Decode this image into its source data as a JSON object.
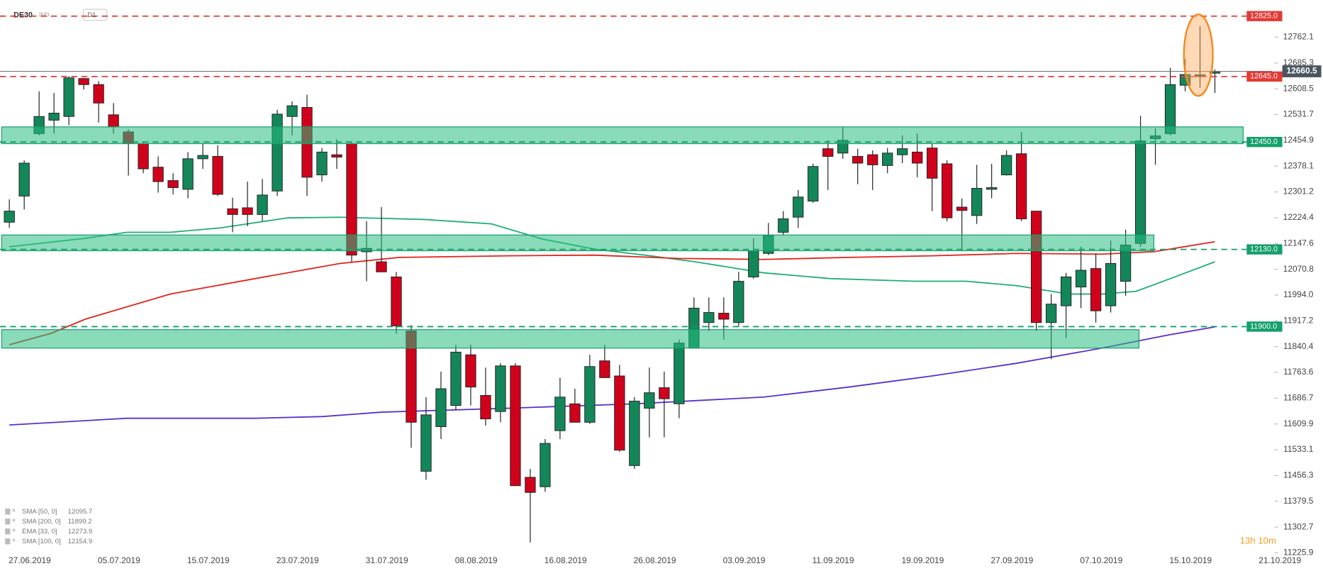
{
  "chart_data": {
    "type": "candlestick",
    "symbol": "DE30",
    "market": "IND",
    "timeframe": "D1",
    "countdown": "13h 10m",
    "categories": [
      "27.06.2019",
      null,
      null,
      null,
      null,
      null,
      "05.07.2019",
      null,
      null,
      null,
      null,
      null,
      "15.07.2019",
      null,
      null,
      null,
      null,
      null,
      "23.07.2019",
      null,
      null,
      null,
      null,
      null,
      "31.07.2019",
      null,
      null,
      null,
      null,
      null,
      "08.08.2019",
      null,
      null,
      null,
      null,
      null,
      "16.08.2019",
      null,
      null,
      null,
      null,
      null,
      "26.08.2019",
      null,
      null,
      null,
      null,
      null,
      "03.09.2019",
      null,
      null,
      null,
      null,
      null,
      "11.09.2019",
      null,
      null,
      null,
      null,
      null,
      "19.09.2019",
      null,
      null,
      null,
      null,
      null,
      "27.09.2019",
      null,
      null,
      null,
      null,
      null,
      "07.10.2019",
      null,
      null,
      null,
      null,
      null,
      "15.10.2019",
      null,
      null,
      null,
      null,
      null,
      "21.10.2019"
    ],
    "open": [
      12211,
      12289,
      12475,
      12515,
      12526,
      12639,
      12621,
      12531,
      12480,
      12445,
      12375,
      12335,
      12309,
      12400,
      12407,
      12251,
      12254,
      12234,
      12304,
      12526,
      12553,
      12352,
      12412,
      12445,
      12123,
      12093,
      12048,
      11887,
      11469,
      11602,
      11665,
      11816,
      11695,
      11647,
      11783,
      11451,
      11423,
      11590,
      11670,
      11615,
      11798,
      11753,
      11486,
      11657,
      11718,
      11670,
      11836,
      11912,
      11940,
      11912,
      12048,
      12118,
      12181,
      12226,
      12274,
      12430,
      12417,
      12407,
      12412,
      12380,
      12412,
      12420,
      12432,
      12385,
      12256,
      12231,
      12309,
      12352,
      12415,
      12244,
      11912,
      11962,
      12018,
      12073,
      11962,
      12035,
      12148,
      12460,
      12475,
      12619,
      12645,
      12655,
      null,
      null,
      null
    ],
    "high": [
      12279,
      12395,
      12601,
      12596,
      12646,
      12641,
      12631,
      12566,
      12488,
      12450,
      12407,
      12357,
      12420,
      12445,
      12440,
      12284,
      12332,
      12340,
      12546,
      12571,
      12591,
      12432,
      12458,
      12450,
      12214,
      12256,
      12063,
      11904,
      11690,
      11766,
      11846,
      11846,
      11778,
      11791,
      11791,
      11476,
      11565,
      11748,
      11715,
      11816,
      11846,
      11786,
      11690,
      11778,
      11766,
      11861,
      11987,
      11987,
      11987,
      12063,
      12163,
      12209,
      12244,
      12307,
      12385,
      12455,
      12495,
      12430,
      12425,
      12432,
      12470,
      12475,
      12445,
      12395,
      12282,
      12382,
      12385,
      12425,
      12480,
      12244,
      11997,
      12060,
      12138,
      12118,
      12156,
      12189,
      12528,
      12490,
      12671,
      12697,
      12795,
      12666,
      null,
      null,
      null
    ],
    "low": [
      12194,
      12249,
      12470,
      12475,
      12500,
      12606,
      12508,
      12475,
      12350,
      12357,
      12299,
      12294,
      12282,
      12370,
      12289,
      12181,
      12199,
      12214,
      12289,
      12470,
      12289,
      12332,
      12370,
      12093,
      12035,
      12063,
      11879,
      11539,
      11444,
      11565,
      11652,
      11665,
      11605,
      11615,
      11426,
      11257,
      11408,
      11565,
      11615,
      11610,
      11748,
      11527,
      11476,
      11570,
      11570,
      11627,
      11836,
      11887,
      11861,
      11899,
      12043,
      12113,
      12173,
      12194,
      12269,
      12307,
      12400,
      12324,
      12307,
      12357,
      12387,
      12345,
      12244,
      12214,
      12126,
      12206,
      12282,
      12350,
      12214,
      11887,
      11803,
      11866,
      11955,
      11912,
      11942,
      11992,
      12138,
      12382,
      12470,
      12601,
      12611,
      12596,
      null,
      null,
      null
    ],
    "close": [
      12244,
      12387,
      12526,
      12536,
      12641,
      12621,
      12566,
      12495,
      12445,
      12370,
      12332,
      12314,
      12400,
      12410,
      12294,
      12234,
      12234,
      12292,
      12533,
      12558,
      12345,
      12420,
      12405,
      12113,
      12133,
      12063,
      11902,
      11615,
      11637,
      11715,
      11824,
      11720,
      11625,
      11783,
      11426,
      11406,
      11552,
      11690,
      11615,
      11781,
      11748,
      11532,
      11678,
      11703,
      11685,
      11851,
      11955,
      11942,
      11922,
      12035,
      12126,
      12171,
      12221,
      12286,
      12377,
      12407,
      12455,
      12387,
      12382,
      12417,
      12430,
      12387,
      12342,
      12224,
      12246,
      12312,
      12314,
      12410,
      12221,
      11912,
      11967,
      12048,
      12068,
      11947,
      12088,
      12143,
      12453,
      12468,
      12621,
      12651,
      12650,
      12660,
      null,
      null,
      null
    ],
    "up_color": "#13875a",
    "down_color": "#d0021b",
    "ylim": [
      11225,
      12873
    ],
    "yticks": [
      12762.1,
      12685.3,
      12608.5,
      12531.7,
      12454.9,
      12378.1,
      12301.2,
      12224.4,
      12147.6,
      12070.8,
      {
        "value": 11994,
        "label": "11994.0"
      },
      11917.2,
      11840.4,
      11763.6,
      11686.7,
      11609.9,
      11533.1,
      11456.3,
      11379.5,
      11302.7,
      11225.9
    ],
    "indicators": [
      {
        "name": "SMA [50, 0]",
        "value": 12095.7,
        "color": "#1fae74",
        "x": [
          0,
          5.1,
          7.9,
          10.8,
          14.2,
          18.7,
          22.2,
          27.9,
          32.4,
          35.8,
          39.3,
          42.7,
          46.1,
          50.7,
          55.2,
          60.9,
          64.3,
          67.7,
          71.2,
          73.4,
          75.7,
          78,
          81
        ],
        "values": [
          12138,
          12163,
          12181,
          12181,
          12194,
          12224,
          12226,
          12219,
          12206,
          12161,
          12131,
          12113,
          12093,
          12060,
          12043,
          12035,
          12035,
          12022,
          11997,
          11997,
          12005,
          12043,
          12093
        ]
      },
      {
        "name": "SMA [200, 0]",
        "value": 11899.2,
        "color": "#5b2fc9",
        "x": [
          0,
          7.9,
          16.5,
          21,
          25,
          33.6,
          42.1,
          50.7,
          56.4,
          62,
          67.7,
          73.4,
          78,
          81
        ],
        "values": [
          11607,
          11627,
          11627,
          11632,
          11645,
          11657,
          11670,
          11690,
          11720,
          11753,
          11791,
          11836,
          11876,
          11899
        ]
      },
      {
        "name": "EMA [33, 0]",
        "value": 12273.9
      },
      {
        "name": "SMA [100, 0]",
        "value": 12154.9,
        "color": "#e0241b",
        "x": [
          0,
          2.8,
          5.1,
          10.8,
          16.5,
          22.2,
          26.2,
          33.6,
          39.3,
          45,
          50.7,
          56.4,
          62,
          67.7,
          73.4,
          76.9,
          81
        ],
        "values": [
          11846,
          11880,
          11922,
          11997,
          12043,
          12088,
          12106,
          12111,
          12113,
          12103,
          12100,
          12106,
          12111,
          12118,
          12116,
          12123,
          12153
        ]
      }
    ],
    "zones": [
      {
        "top": 12495,
        "bottom": 12445,
        "end_index": 82.9
      },
      {
        "top": 12173,
        "bottom": 12126,
        "end_index": 76.9
      },
      {
        "top": 11891,
        "bottom": 11836,
        "end_index": 75.9
      }
    ],
    "levels": [
      {
        "value": 12825,
        "label": "12825.0",
        "color": "#e53935"
      },
      {
        "value": 12645,
        "label": "12645.0",
        "color": "#e53935"
      },
      {
        "value": 12450,
        "label": "12450.0",
        "color": "#13a06a"
      },
      {
        "value": 12130,
        "label": "12130.0",
        "color": "#13a06a"
      },
      {
        "value": 11900,
        "label": "11900.0",
        "color": "#13a06a"
      }
    ],
    "last_price": {
      "value": 12660.5,
      "color": "#4a5560"
    }
  }
}
